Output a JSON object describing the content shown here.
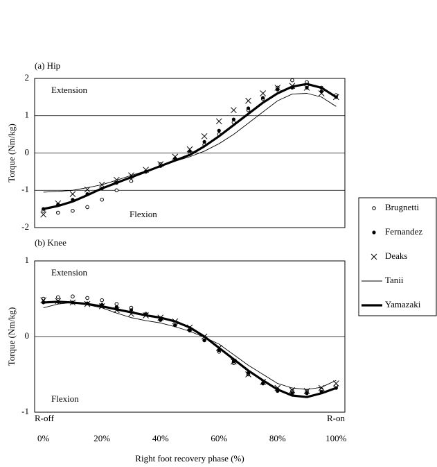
{
  "chart_data": [
    {
      "type": "line",
      "title": "(a) Hip",
      "ylabel": "Torque (Nm/kg)",
      "annotations": {
        "extension": "Extension",
        "flexion": "Flexion"
      },
      "x": [
        0,
        5,
        10,
        15,
        20,
        25,
        30,
        35,
        40,
        45,
        50,
        55,
        60,
        65,
        70,
        75,
        80,
        85,
        90,
        95,
        100
      ],
      "xlim": [
        -3,
        103
      ],
      "ylim": [
        -2,
        2
      ],
      "yticks": [
        -2,
        -1,
        0,
        1,
        2
      ],
      "grid": true,
      "legend": "right",
      "series": [
        {
          "name": "Brugnetti",
          "color": "#000000",
          "marker": "circle-open",
          "values": [
            -1.55,
            -1.6,
            -1.55,
            -1.45,
            -1.25,
            -1.0,
            -0.75,
            -0.5,
            -0.3,
            -0.15,
            0.0,
            0.22,
            0.5,
            0.82,
            1.15,
            1.45,
            1.75,
            1.95,
            1.9,
            1.75,
            1.55
          ]
        },
        {
          "name": "Fernandez",
          "color": "#000000",
          "marker": "circle",
          "values": [
            -1.5,
            -1.38,
            -1.25,
            -1.1,
            -0.95,
            -0.8,
            -0.65,
            -0.5,
            -0.35,
            -0.15,
            0.05,
            0.3,
            0.6,
            0.9,
            1.2,
            1.48,
            1.7,
            1.75,
            1.75,
            1.65,
            1.5
          ]
        },
        {
          "name": "Deaks",
          "color": "#000000",
          "marker": "x",
          "values": [
            -1.65,
            -1.35,
            -1.1,
            -0.98,
            -0.85,
            -0.72,
            -0.6,
            -0.45,
            -0.3,
            -0.1,
            0.1,
            0.45,
            0.85,
            1.15,
            1.4,
            1.6,
            1.75,
            1.8,
            1.75,
            1.6,
            1.5
          ]
        },
        {
          "name": "Tanii",
          "color": "#000000",
          "marker": "line-thin",
          "values": [
            -1.05,
            -1.03,
            -1.0,
            -0.93,
            -0.85,
            -0.73,
            -0.6,
            -0.48,
            -0.35,
            -0.22,
            -0.1,
            0.05,
            0.25,
            0.5,
            0.8,
            1.1,
            1.4,
            1.58,
            1.6,
            1.5,
            1.25
          ]
        },
        {
          "name": "Yamazaki",
          "color": "#000000",
          "marker": "line-thick",
          "values": [
            -1.5,
            -1.42,
            -1.3,
            -1.13,
            -0.95,
            -0.8,
            -0.65,
            -0.5,
            -0.35,
            -0.2,
            -0.05,
            0.18,
            0.45,
            0.75,
            1.05,
            1.35,
            1.6,
            1.78,
            1.85,
            1.75,
            1.5
          ]
        }
      ]
    },
    {
      "type": "line",
      "title": "(b) Knee",
      "ylabel": "Torque (Nm/kg)",
      "xlabel": "Right foot recovery phase (%)",
      "annotations": {
        "extension": "Extension",
        "flexion": "Flexion",
        "r_off": "R-off",
        "r_on": "R-on"
      },
      "x": [
        0,
        5,
        10,
        15,
        20,
        25,
        30,
        35,
        40,
        45,
        50,
        55,
        60,
        65,
        70,
        75,
        80,
        85,
        90,
        95,
        100
      ],
      "xlim": [
        -3,
        103
      ],
      "xticks": [
        {
          "value": 0,
          "label": "0%"
        },
        {
          "value": 20,
          "label": "20%"
        },
        {
          "value": 40,
          "label": "40%"
        },
        {
          "value": 60,
          "label": "60%"
        },
        {
          "value": 80,
          "label": "80%"
        },
        {
          "value": 100,
          "label": "100%"
        }
      ],
      "ylim": [
        -1,
        1
      ],
      "yticks": [
        -1,
        0,
        1
      ],
      "grid": true,
      "series": [
        {
          "color": "#000000",
          "marker": "circle-open",
          "values": [
            0.5,
            0.52,
            0.53,
            0.51,
            0.48,
            0.43,
            0.38,
            0.3,
            0.22,
            0.15,
            0.08,
            -0.05,
            -0.2,
            -0.35,
            -0.5,
            -0.62,
            -0.7,
            -0.72,
            -0.72,
            -0.7,
            -0.65
          ]
        },
        {
          "color": "#000000",
          "marker": "circle",
          "values": [
            0.45,
            0.46,
            0.45,
            0.44,
            0.42,
            0.39,
            0.35,
            0.29,
            0.22,
            0.15,
            0.08,
            -0.05,
            -0.18,
            -0.33,
            -0.48,
            -0.62,
            -0.72,
            -0.75,
            -0.75,
            -0.73,
            -0.68
          ]
        },
        {
          "color": "#000000",
          "marker": "x",
          "values": [
            0.48,
            0.47,
            0.45,
            0.43,
            0.4,
            0.35,
            0.3,
            0.28,
            0.25,
            0.2,
            0.12,
            0.0,
            -0.15,
            -0.33,
            -0.5,
            -0.6,
            -0.68,
            -0.71,
            -0.72,
            -0.68,
            -0.62
          ]
        },
        {
          "color": "#000000",
          "marker": "line-thin",
          "values": [
            0.38,
            0.43,
            0.45,
            0.42,
            0.38,
            0.31,
            0.25,
            0.21,
            0.18,
            0.13,
            0.07,
            -0.01,
            -0.1,
            -0.24,
            -0.38,
            -0.5,
            -0.62,
            -0.68,
            -0.7,
            -0.67,
            -0.58
          ]
        },
        {
          "color": "#000000",
          "marker": "line-thick",
          "values": [
            0.45,
            0.46,
            0.45,
            0.43,
            0.4,
            0.36,
            0.32,
            0.28,
            0.25,
            0.2,
            0.12,
            0.0,
            -0.15,
            -0.3,
            -0.45,
            -0.58,
            -0.7,
            -0.78,
            -0.8,
            -0.75,
            -0.68
          ]
        }
      ]
    }
  ]
}
